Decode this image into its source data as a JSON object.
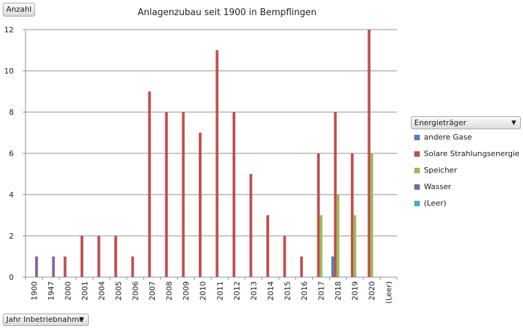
{
  "buttons": {
    "value_field": "Anzahl",
    "legend_field": "Energieträger",
    "axis_field": "Jahr Inbetriebnahme"
  },
  "colors": {
    "andere Gase": "#4f81bd",
    "Solare Strahlungsenergie": "#c0504d",
    "Speicher": "#9bbb59",
    "Wasser": "#8064a2",
    "(Leer)": "#4bacc6"
  },
  "icons": {
    "dropdown": "chevron-down-icon"
  },
  "chart_data": {
    "type": "bar",
    "title": "Anlagenzubau seit 1900 in Bempflingen",
    "xlabel": "",
    "ylabel": "",
    "ylim": [
      0,
      12
    ],
    "yticks": [
      0,
      2,
      4,
      6,
      8,
      10,
      12
    ],
    "grid": true,
    "legend_position": "right",
    "categories": [
      "1900",
      "1947",
      "2000",
      "2001",
      "2004",
      "2005",
      "2006",
      "2007",
      "2008",
      "2009",
      "2010",
      "2011",
      "2012",
      "2013",
      "2014",
      "2015",
      "2016",
      "2017",
      "2018",
      "2019",
      "2020",
      "(Leer)"
    ],
    "series": [
      {
        "name": "andere Gase",
        "values": [
          0,
          0,
          0,
          0,
          0,
          0,
          0,
          0,
          0,
          0,
          0,
          0,
          0,
          0,
          0,
          0,
          0,
          0,
          1,
          0,
          0,
          0
        ]
      },
      {
        "name": "Solare Strahlungsenergie",
        "values": [
          0,
          0,
          1,
          2,
          2,
          2,
          1,
          9,
          8,
          8,
          7,
          11,
          8,
          5,
          3,
          2,
          1,
          6,
          8,
          6,
          12,
          0
        ]
      },
      {
        "name": "Speicher",
        "values": [
          0,
          0,
          0,
          0,
          0,
          0,
          0,
          0,
          0,
          0,
          0,
          0,
          0,
          0,
          0,
          0,
          0,
          3,
          4,
          3,
          6,
          0
        ]
      },
      {
        "name": "Wasser",
        "values": [
          1,
          1,
          0,
          0,
          0,
          0,
          0,
          0,
          0,
          0,
          0,
          0,
          0,
          0,
          0,
          0,
          0,
          0,
          0,
          0,
          0,
          0
        ]
      },
      {
        "name": "(Leer)",
        "values": [
          0,
          0,
          0,
          0,
          0,
          0,
          0,
          0,
          0,
          0,
          0,
          0,
          0,
          0,
          0,
          0,
          0,
          0,
          0,
          0,
          0,
          0
        ]
      }
    ]
  }
}
